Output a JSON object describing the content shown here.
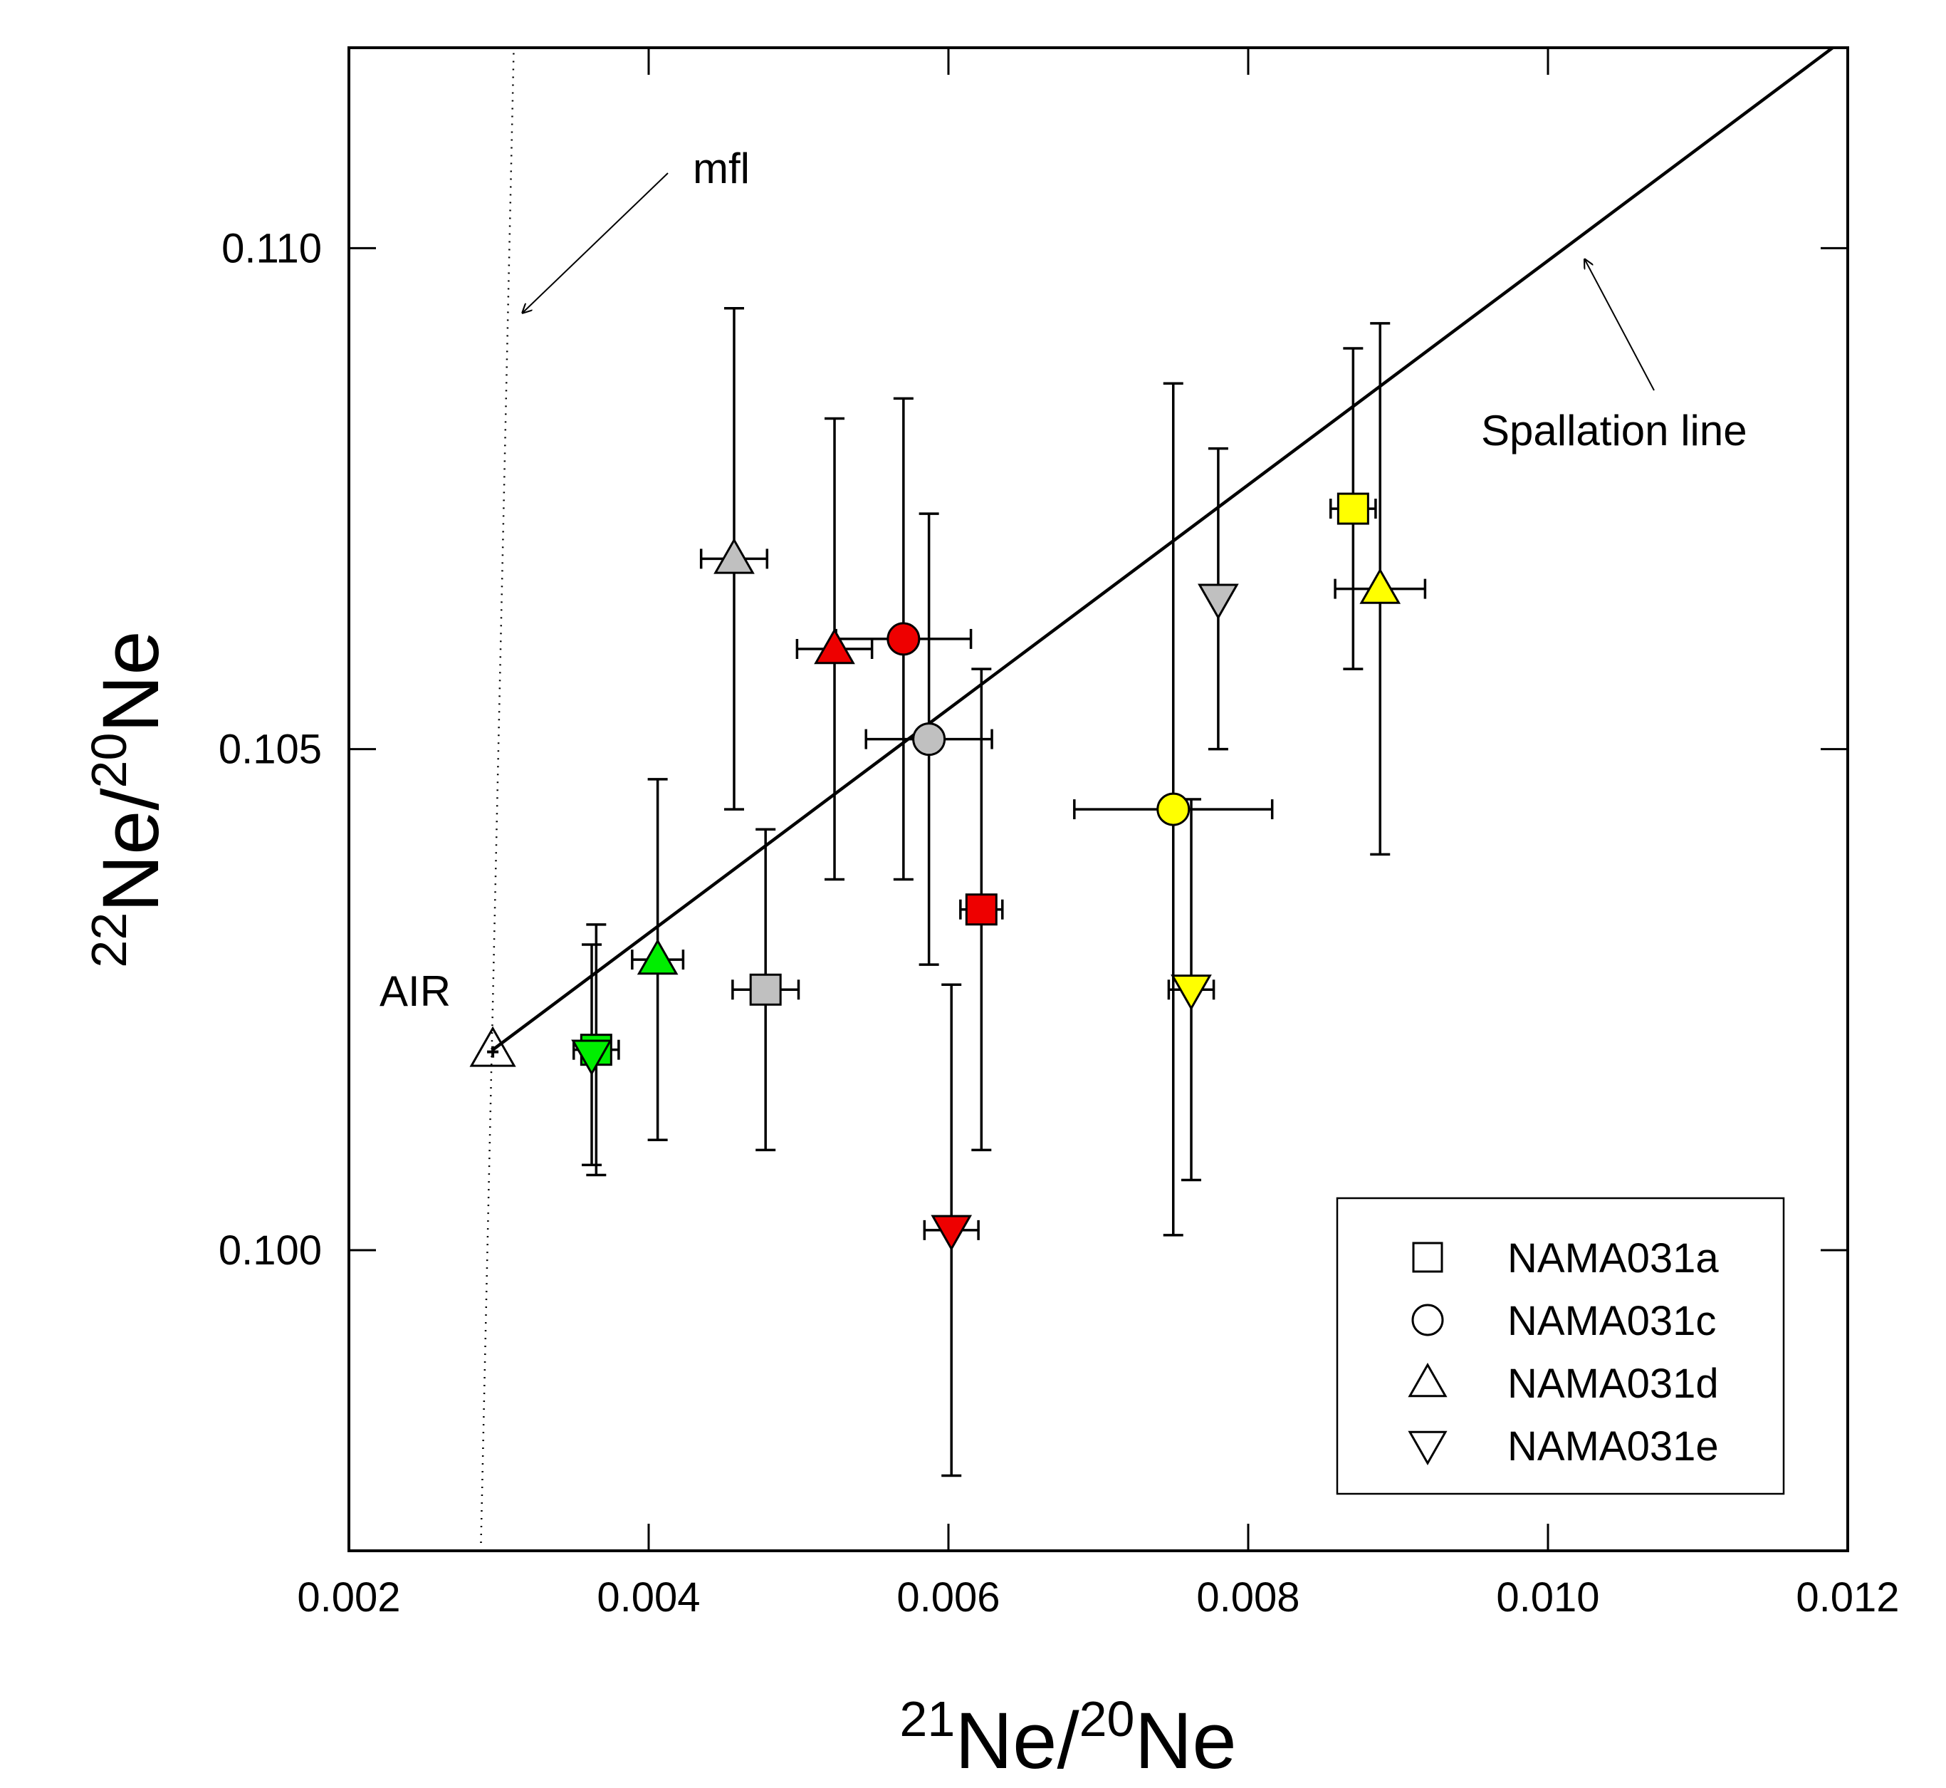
{
  "chart_data": {
    "type": "scatter",
    "xlabel": {
      "iso1": "21",
      "base1": "Ne/",
      "iso2": "20",
      "base2": "Ne"
    },
    "ylabel": {
      "iso1": "22",
      "base1": "Ne/",
      "iso2": "20",
      "base2": "Ne"
    },
    "xlim": [
      0.002,
      0.012
    ],
    "ylim": [
      0.097,
      0.112
    ],
    "xticks": [
      {
        "value": 0.002,
        "label": "0.002"
      },
      {
        "value": 0.004,
        "label": "0.004"
      },
      {
        "value": 0.006,
        "label": "0.006"
      },
      {
        "value": 0.008,
        "label": "0.008"
      },
      {
        "value": 0.01,
        "label": "0.010"
      },
      {
        "value": 0.012,
        "label": "0.012"
      }
    ],
    "yticks": [
      {
        "value": 0.1,
        "label": "0.100"
      },
      {
        "value": 0.105,
        "label": "0.105"
      },
      {
        "value": 0.11,
        "label": "0.110"
      }
    ],
    "air": {
      "label": "AIR",
      "x": 0.00296,
      "y": 0.102
    },
    "spallation_line": {
      "label": "Spallation line",
      "x1": 0.00296,
      "y1": 0.102,
      "x2": 0.0119,
      "y2": 0.112
    },
    "mfl": {
      "label": "mfl",
      "x1": 0.00288,
      "y1": 0.097,
      "x2": 0.0031,
      "y2": 0.112
    },
    "legend": {
      "position": "bottom-right",
      "entries": [
        {
          "marker": "square",
          "label": "NAMA031a"
        },
        {
          "marker": "circle",
          "label": "NAMA031c"
        },
        {
          "marker": "triangle-up",
          "label": "NAMA031d"
        },
        {
          "marker": "triangle-down",
          "label": "NAMA031e"
        }
      ]
    },
    "colors": {
      "green": "#00ee00",
      "gray": "#c0c0c0",
      "red": "#ee0000",
      "yellow": "#ffff00"
    },
    "points": [
      {
        "series": "NAMA031a",
        "marker": "square",
        "color": "green",
        "x": 0.00365,
        "y": 0.102,
        "xerr": 0.00015,
        "yerr": 0.00125
      },
      {
        "series": "NAMA031e",
        "marker": "triangle-down",
        "color": "green",
        "x": 0.00362,
        "y": 0.10195,
        "xerr": 0.0,
        "yerr": 0.0011
      },
      {
        "series": "NAMA031d",
        "marker": "triangle-up",
        "color": "green",
        "x": 0.00406,
        "y": 0.1029,
        "xerr": 0.00017,
        "yerr": 0.0018
      },
      {
        "series": "NAMA031d",
        "marker": "triangle-up",
        "color": "gray",
        "x": 0.00457,
        "y": 0.1069,
        "xerr": 0.00022,
        "yerr": 0.0025
      },
      {
        "series": "NAMA031a",
        "marker": "square",
        "color": "gray",
        "x": 0.00478,
        "y": 0.1026,
        "xerr": 0.00022,
        "yerr": 0.0016
      },
      {
        "series": "NAMA031d",
        "marker": "triangle-up",
        "color": "red",
        "x": 0.00524,
        "y": 0.106,
        "xerr": 0.00025,
        "yerr": 0.0023
      },
      {
        "series": "NAMA031c",
        "marker": "circle",
        "color": "red",
        "x": 0.0057,
        "y": 0.1061,
        "xerr": 0.00045,
        "yerr": 0.0024
      },
      {
        "series": "NAMA031c",
        "marker": "circle",
        "color": "gray",
        "x": 0.00587,
        "y": 0.1051,
        "xerr": 0.00042,
        "yerr": 0.00225
      },
      {
        "series": "NAMA031e",
        "marker": "triangle-down",
        "color": "red",
        "x": 0.00602,
        "y": 0.1002,
        "xerr": 0.00018,
        "yerr": 0.00245
      },
      {
        "series": "NAMA031a",
        "marker": "square",
        "color": "red",
        "x": 0.00622,
        "y": 0.1034,
        "xerr": 0.00014,
        "yerr": 0.0024
      },
      {
        "series": "NAMA031c",
        "marker": "circle",
        "color": "yellow",
        "x": 0.0075,
        "y": 0.1044,
        "xerr": 0.00066,
        "yerr": 0.00425
      },
      {
        "series": "NAMA031e",
        "marker": "triangle-down",
        "color": "yellow",
        "x": 0.00762,
        "y": 0.1026,
        "xerr": 0.00015,
        "yerr": 0.0019
      },
      {
        "series": "NAMA031e",
        "marker": "triangle-down",
        "color": "gray",
        "x": 0.0078,
        "y": 0.1065,
        "xerr": 0.0,
        "yerr": 0.0015
      },
      {
        "series": "NAMA031a",
        "marker": "square",
        "color": "yellow",
        "x": 0.0087,
        "y": 0.1074,
        "xerr": 0.00015,
        "yerr": 0.0016
      },
      {
        "series": "NAMA031d",
        "marker": "triangle-up",
        "color": "yellow",
        "x": 0.00888,
        "y": 0.1066,
        "xerr": 0.0003,
        "yerr": 0.00265
      }
    ]
  }
}
